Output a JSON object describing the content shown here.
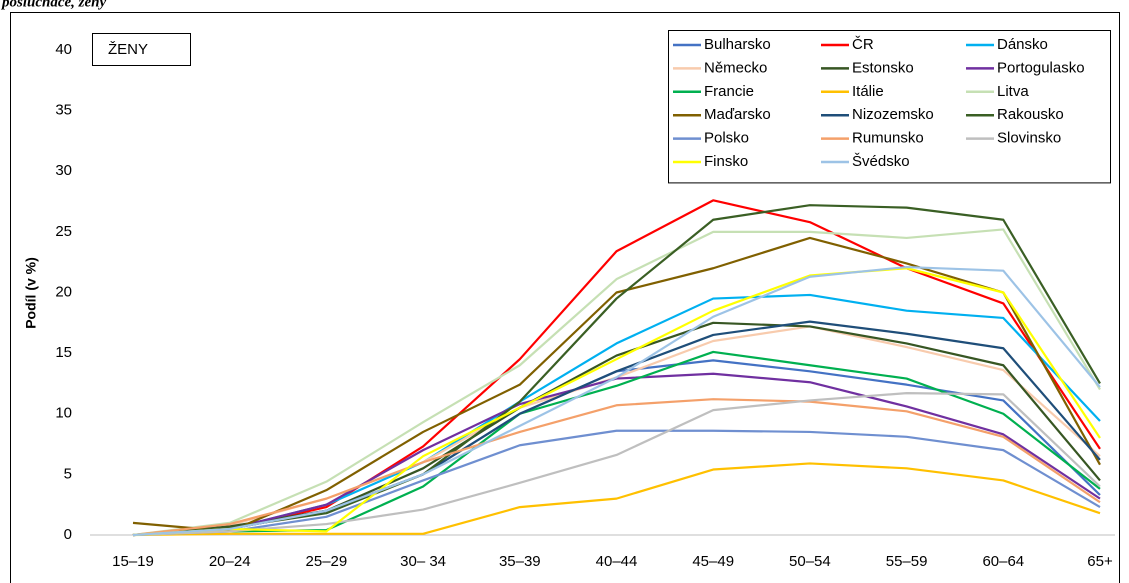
{
  "chart_data": {
    "type": "line",
    "title": "posluchače, ženy",
    "inset_label": "ŽENY",
    "y_label": "Podíl (v %)",
    "categories": [
      "15–19",
      "20–24",
      "25–29",
      "30– 34",
      "35–39",
      "40–44",
      "45–49",
      "50–54",
      "55–59",
      "60–64",
      "65+"
    ],
    "ylim": [
      0,
      40
    ],
    "yticks": [
      0,
      5,
      10,
      15,
      20,
      25,
      30,
      35,
      40
    ],
    "grid": false,
    "legend": "upper right",
    "series": [
      {
        "name": "Bulharsko",
        "color": "#4472c4",
        "values": [
          0,
          0.5,
          2,
          5,
          10,
          13.5,
          14.4,
          13.5,
          12.4,
          11.1,
          3.3
        ]
      },
      {
        "name": "ČR",
        "color": "#ff0000",
        "values": [
          0,
          0.5,
          2.3,
          7.3,
          14.5,
          23.4,
          27.6,
          25.8,
          22,
          19.1,
          7.1
        ]
      },
      {
        "name": "Dánsko",
        "color": "#00b0f0",
        "values": [
          0,
          0.5,
          2.5,
          6,
          11,
          15.8,
          19.5,
          19.8,
          18.5,
          17.9,
          9.4
        ]
      },
      {
        "name": "Německo",
        "color": "#f8cbad",
        "values": [
          0,
          0.8,
          3,
          6,
          10.5,
          13,
          16,
          17.2,
          15.5,
          13.6,
          6.5
        ]
      },
      {
        "name": "Estonsko",
        "color": "#375623",
        "values": [
          0,
          0.7,
          2,
          5.5,
          10.5,
          14.8,
          17.5,
          17.2,
          15.8,
          14,
          4.5
        ]
      },
      {
        "name": "Portogulasko",
        "color": "#7030a0",
        "values": [
          0,
          0.5,
          2.5,
          7,
          10.8,
          12.9,
          13.3,
          12.6,
          10.6,
          8.3,
          3
        ]
      },
      {
        "name": "Francie",
        "color": "#00b050",
        "values": [
          0,
          0.3,
          0.4,
          4,
          10,
          12.3,
          15.1,
          14,
          12.9,
          10,
          3.8
        ]
      },
      {
        "name": "Itálie",
        "color": "#ffc000",
        "values": [
          0,
          0.1,
          0.1,
          0.1,
          2.3,
          3,
          5.4,
          5.9,
          5.5,
          4.5,
          1.8
        ]
      },
      {
        "name": "Litva",
        "color": "#c6e0b4",
        "values": [
          0,
          1,
          4.4,
          9.3,
          14,
          21.1,
          25,
          25,
          24.5,
          25.2,
          12
        ]
      },
      {
        "name": "Maďarsko",
        "color": "#806000",
        "values": [
          1,
          0.3,
          3.7,
          8.5,
          12.4,
          20,
          22,
          24.5,
          22.4,
          20,
          5.8
        ]
      },
      {
        "name": "Nizozemsko",
        "color": "#1f4e79",
        "values": [
          0,
          0.5,
          2,
          5,
          10,
          13.5,
          16.5,
          17.6,
          16.6,
          15.4,
          6.2
        ]
      },
      {
        "name": "Rakousko",
        "color": "#3a5f24",
        "values": [
          0,
          0.6,
          1.8,
          5,
          11,
          19.5,
          26,
          27.2,
          27,
          26,
          12.5
        ]
      },
      {
        "name": "Polsko",
        "color": "#6f8fd0",
        "values": [
          0,
          0.3,
          1.5,
          4.5,
          7.4,
          8.6,
          8.6,
          8.5,
          8.1,
          7,
          2.3
        ]
      },
      {
        "name": "Rumunsko",
        "color": "#f4a06a",
        "values": [
          0,
          0.9,
          3,
          6,
          8.5,
          10.7,
          11.2,
          11,
          10.2,
          8.1,
          2.7
        ]
      },
      {
        "name": "Slovinsko",
        "color": "#bfbfbf",
        "values": [
          0,
          0.3,
          0.9,
          2.1,
          4.3,
          6.6,
          10.3,
          11.1,
          11.7,
          11.6,
          4
        ]
      },
      {
        "name": "Finsko",
        "color": "#ffff00",
        "values": [
          0,
          0.5,
          0.3,
          6.5,
          10.5,
          14.5,
          18.5,
          21.4,
          22,
          20,
          8
        ]
      },
      {
        "name": "Švédsko",
        "color": "#9dc3e6",
        "values": [
          0,
          0.5,
          2,
          5,
          9,
          13,
          18,
          21.3,
          22.1,
          21.8,
          12.2
        ]
      }
    ]
  }
}
